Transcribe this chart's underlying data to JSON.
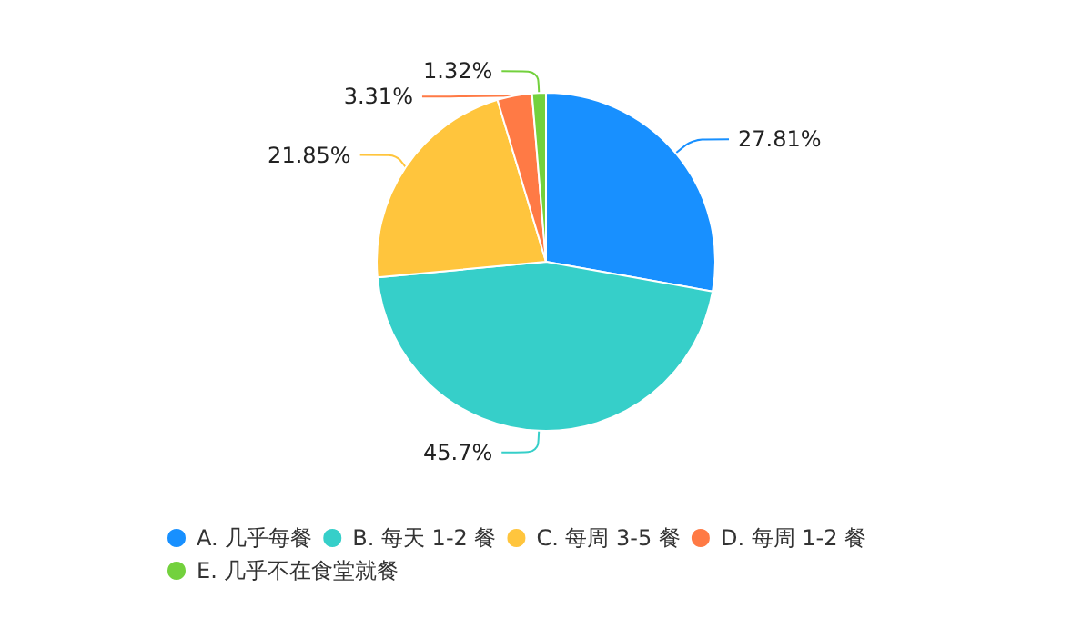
{
  "chart_data": {
    "type": "pie",
    "categories": [
      "A. 几乎每餐",
      "B. 每天 1-2 餐",
      "C. 每周 3-5 餐",
      "D. 每周 1-2 餐",
      "E. 几乎不在食堂就餐"
    ],
    "values": [
      27.81,
      45.7,
      21.85,
      3.31,
      1.32
    ],
    "colors": [
      "#1890ff",
      "#36cfc9",
      "#ffc53d",
      "#ff7a45",
      "#73d13d"
    ],
    "value_labels": [
      "27.81%",
      "45.7%",
      "21.85%",
      "3.31%",
      "1.32%"
    ],
    "legend": "bottom"
  }
}
